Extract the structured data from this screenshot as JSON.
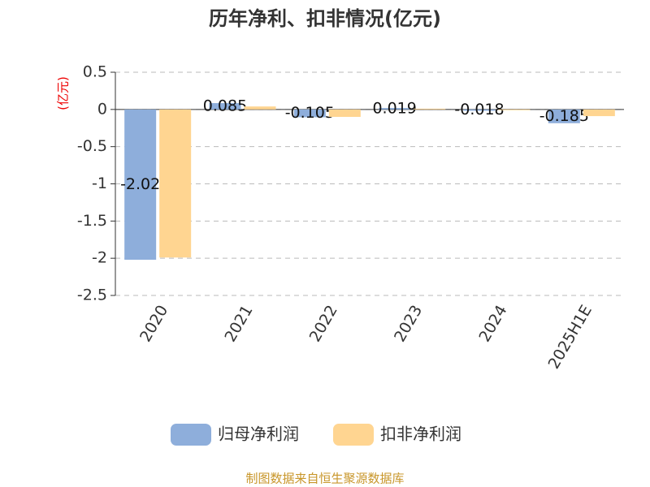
{
  "chart_data": {
    "type": "bar",
    "title": "历年净利、扣非情况(亿元)",
    "y_label": "(亿元)",
    "categories": [
      "2020",
      "2021",
      "2022",
      "2023",
      "2024",
      "2025H1E"
    ],
    "series": [
      {
        "name": "归母净利润",
        "color": "#8eaedb",
        "values": [
          -2.02,
          0.085,
          -0.105,
          0.019,
          -0.018,
          -0.185
        ],
        "show_labels": true
      },
      {
        "name": "扣非净利润",
        "color": "#ffd591",
        "values": [
          -1.99,
          0.04,
          -0.1,
          0.01,
          -0.01,
          -0.09
        ],
        "show_labels": false
      }
    ],
    "ylim": [
      -2.5,
      0.5
    ],
    "yticks": [
      0.5,
      0,
      -0.5,
      -1,
      -1.5,
      -2,
      -2.5
    ],
    "grid": true,
    "source": "制图数据来自恒生聚源数据库"
  }
}
